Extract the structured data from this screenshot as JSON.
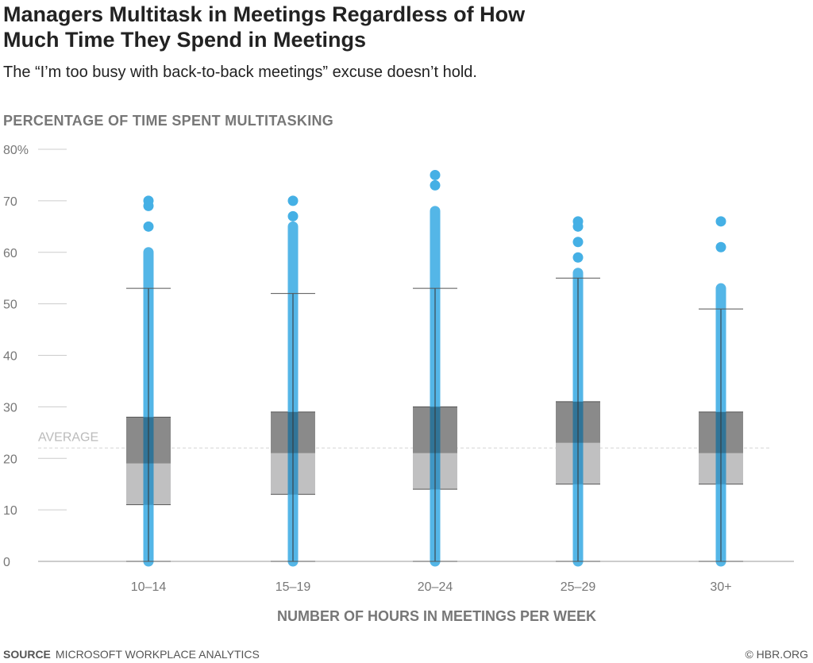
{
  "title": "Managers Multitask in Meetings Regardless of How Much Time They Spend in Meetings",
  "subtitle": "The “I’m too busy with back-to-back meetings” excuse doesn’t hold.",
  "source_label": "SOURCE",
  "source_text": "MICROSOFT WORKPLACE ANALYTICS",
  "credit": "© HBR.ORG",
  "colors": {
    "points": "#45b0e5",
    "box_upper": "#8a8a8a",
    "box_lower": "#c0c0c1",
    "overlap": "#2a6585"
  },
  "chart_data": {
    "type": "boxplot",
    "title": "Managers Multitask in Meetings Regardless of How Much Time They Spend in Meetings",
    "ylabel": "PERCENTAGE OF TIME SPENT MULTITASKING",
    "xlabel": "NUMBER OF HOURS IN MEETINGS PER WEEK",
    "ylim": [
      0,
      80
    ],
    "yticks": [
      0,
      10,
      20,
      30,
      40,
      50,
      60,
      70,
      80
    ],
    "ytick_labels": [
      "0",
      "10",
      "20",
      "30",
      "40",
      "50",
      "60",
      "70",
      "80%"
    ],
    "average": 22,
    "average_label": "AVERAGE",
    "categories": [
      "10–14",
      "15–19",
      "20–24",
      "25–29",
      "30+"
    ],
    "boxes": [
      {
        "min": 0,
        "q1": 11,
        "median": 19,
        "q3": 28,
        "max": 53,
        "dense_top": 60,
        "outliers": [
          65,
          69,
          70
        ]
      },
      {
        "min": 0,
        "q1": 13,
        "median": 21,
        "q3": 29,
        "max": 52,
        "dense_top": 65,
        "outliers": [
          67,
          70
        ]
      },
      {
        "min": 0,
        "q1": 14,
        "median": 21,
        "q3": 30,
        "max": 53,
        "dense_top": 68,
        "outliers": [
          73,
          75
        ]
      },
      {
        "min": 0,
        "q1": 15,
        "median": 23,
        "q3": 31,
        "max": 55,
        "dense_top": 56,
        "outliers": [
          59,
          62,
          65,
          66
        ]
      },
      {
        "min": 0,
        "q1": 15,
        "median": 21,
        "q3": 29,
        "max": 49,
        "dense_top": 53,
        "outliers": [
          61,
          66
        ]
      }
    ]
  }
}
